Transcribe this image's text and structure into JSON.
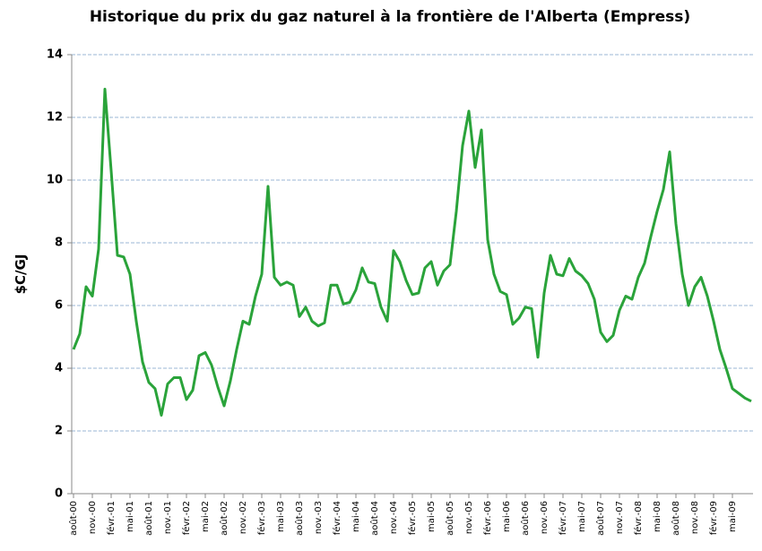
{
  "chart_data": {
    "type": "line",
    "title": "Historique du prix du gaz naturel à la frontière de l'Alberta (Empress)",
    "y_label": "$C/GJ",
    "categories": [
      "août-00",
      null,
      null,
      "nov.-00",
      null,
      null,
      "févr.-01",
      null,
      null,
      "mai-01",
      null,
      null,
      "août-01",
      null,
      null,
      "nov.-01",
      null,
      null,
      "févr.-02",
      null,
      null,
      "mai-02",
      null,
      null,
      "août-02",
      null,
      null,
      "nov.-02",
      null,
      null,
      "févr.-03",
      null,
      null,
      "mai-03",
      null,
      null,
      "août-03",
      null,
      null,
      "nov.-03",
      null,
      null,
      "févr.-04",
      null,
      null,
      "mai-04",
      null,
      null,
      "août-04",
      null,
      null,
      "nov.-04",
      null,
      null,
      "févr.-05",
      null,
      null,
      "mai-05",
      null,
      null,
      "août-05",
      null,
      null,
      "nov.-05",
      null,
      null,
      "févr.-06",
      null,
      null,
      "mai-06",
      null,
      null,
      "août-06",
      null,
      null,
      "nov.-06",
      null,
      null,
      "févr.-07",
      null,
      null,
      "mai-07",
      null,
      null,
      "août-07",
      null,
      null,
      "nov.-07",
      null,
      null,
      "févr.-08",
      null,
      null,
      "mai-08",
      null,
      null,
      "août-08",
      null,
      null,
      "nov.-08",
      null,
      null,
      "févr.-09",
      null,
      null,
      "mai-09",
      null,
      null,
      null
    ],
    "series": [
      {
        "name": "Empress",
        "color": "#2aa33a",
        "values": [
          4.6,
          5.1,
          6.6,
          6.3,
          7.8,
          12.9,
          10.3,
          7.6,
          7.55,
          7.0,
          5.5,
          4.2,
          3.55,
          3.35,
          2.5,
          3.5,
          3.7,
          3.7,
          3.0,
          3.3,
          4.4,
          4.5,
          4.1,
          3.4,
          2.8,
          3.6,
          4.6,
          5.5,
          5.4,
          6.3,
          7.0,
          9.8,
          6.9,
          6.65,
          6.75,
          6.65,
          5.65,
          5.95,
          5.5,
          5.35,
          5.45,
          6.65,
          6.65,
          6.05,
          6.1,
          6.5,
          7.2,
          6.75,
          6.7,
          5.95,
          5.5,
          7.75,
          7.4,
          6.8,
          6.35,
          6.4,
          7.2,
          7.4,
          6.65,
          7.1,
          7.3,
          9.0,
          11.1,
          12.2,
          10.4,
          11.6,
          8.1,
          7.0,
          6.45,
          6.35,
          5.4,
          5.6,
          5.95,
          5.9,
          4.35,
          6.4,
          7.6,
          7.0,
          6.95,
          7.5,
          7.1,
          6.95,
          6.7,
          6.2,
          5.15,
          4.85,
          5.05,
          5.85,
          6.3,
          6.2,
          6.9,
          7.35,
          8.2,
          9.0,
          9.7,
          10.9,
          8.6,
          7.0,
          6.0,
          6.6,
          6.9,
          6.3,
          5.5,
          4.6,
          4.0,
          3.35,
          3.2,
          3.05,
          2.95
        ]
      }
    ],
    "ylim": [
      0,
      14
    ],
    "yticks": [
      0,
      2,
      4,
      6,
      8,
      10,
      12,
      14
    ],
    "grid": true,
    "legend": false
  }
}
